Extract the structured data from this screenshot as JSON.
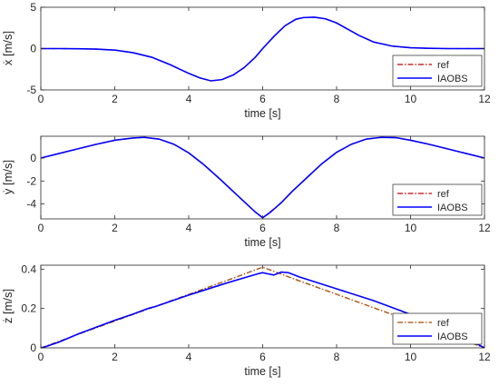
{
  "colors": {
    "ref": "#c00000",
    "ref_z": "#a64a00",
    "iaobs": "#0000ff",
    "axis": "#262626"
  },
  "chart_data": [
    {
      "type": "line",
      "ylabel": "ẋ [m/s]",
      "xlabel": "time [s]",
      "xlim": [
        0,
        12
      ],
      "ylim": [
        -5,
        5
      ],
      "xticks": [
        0,
        2,
        4,
        6,
        8,
        10,
        12
      ],
      "yticks": [
        -5,
        0,
        5
      ],
      "grid": false,
      "legend": "bottom-right",
      "series": [
        {
          "name": "ref",
          "style": "dash-dot",
          "color": "#c00000",
          "x": [
            0,
            0.5,
            1,
            1.5,
            2,
            2.5,
            3,
            3.5,
            4,
            4.3,
            4.6,
            4.9,
            5.2,
            5.5,
            5.8,
            6,
            6.3,
            6.6,
            6.9,
            7.1,
            7.4,
            7.7,
            8,
            8.3,
            8.6,
            9,
            9.5,
            10,
            10.5,
            11,
            11.5,
            12
          ],
          "y": [
            0,
            0,
            -0.02,
            -0.06,
            -0.18,
            -0.5,
            -1.05,
            -1.95,
            -3.0,
            -3.55,
            -3.9,
            -3.75,
            -3.2,
            -2.3,
            -1.05,
            0,
            1.45,
            2.75,
            3.55,
            3.75,
            3.8,
            3.6,
            3.1,
            2.35,
            1.6,
            0.8,
            0.3,
            0.1,
            0.03,
            0,
            0,
            0
          ]
        },
        {
          "name": "IAOBS",
          "style": "solid",
          "color": "#0000ff",
          "x": [
            0,
            0.5,
            1,
            1.5,
            2,
            2.5,
            3,
            3.5,
            4,
            4.3,
            4.6,
            4.9,
            5.2,
            5.5,
            5.8,
            6,
            6.3,
            6.6,
            6.9,
            7.1,
            7.4,
            7.7,
            8,
            8.3,
            8.6,
            9,
            9.5,
            10,
            10.5,
            11,
            11.5,
            12
          ],
          "y": [
            0,
            0,
            -0.02,
            -0.06,
            -0.18,
            -0.5,
            -1.05,
            -1.95,
            -3.0,
            -3.55,
            -3.9,
            -3.75,
            -3.2,
            -2.3,
            -1.05,
            0,
            1.45,
            2.75,
            3.55,
            3.75,
            3.8,
            3.6,
            3.1,
            2.35,
            1.6,
            0.8,
            0.3,
            0.1,
            0.03,
            0,
            0,
            0
          ]
        }
      ]
    },
    {
      "type": "line",
      "ylabel": "ẏ [m/s]",
      "xlabel": "time [s]",
      "xlim": [
        0,
        12
      ],
      "ylim": [
        -5.3,
        1.9
      ],
      "xticks": [
        0,
        2,
        4,
        6,
        8,
        10,
        12
      ],
      "yticks": [
        -4,
        -2,
        0
      ],
      "grid": false,
      "legend": "bottom-right",
      "series": [
        {
          "name": "ref",
          "style": "dash-dot",
          "color": "#c00000",
          "x": [
            0,
            0.5,
            1,
            1.5,
            2,
            2.5,
            2.8,
            3.2,
            3.6,
            4,
            4.4,
            4.8,
            5.2,
            5.5,
            5.8,
            6,
            6.2,
            6.5,
            6.8,
            7.2,
            7.6,
            8,
            8.4,
            8.8,
            9.2,
            9.6,
            10,
            10.5,
            11,
            11.5,
            12
          ],
          "y": [
            0,
            0.4,
            0.8,
            1.2,
            1.55,
            1.75,
            1.8,
            1.65,
            1.2,
            0.45,
            -0.55,
            -1.7,
            -2.9,
            -3.8,
            -4.7,
            -5.2,
            -4.7,
            -3.9,
            -2.9,
            -1.7,
            -0.5,
            0.5,
            1.2,
            1.65,
            1.8,
            1.78,
            1.55,
            1.2,
            0.8,
            0.4,
            0
          ]
        },
        {
          "name": "IAOBS",
          "style": "solid",
          "color": "#0000ff",
          "x": [
            0,
            0.5,
            1,
            1.5,
            2,
            2.5,
            2.8,
            3.2,
            3.6,
            4,
            4.4,
            4.8,
            5.2,
            5.5,
            5.8,
            6,
            6.2,
            6.5,
            6.8,
            7.2,
            7.6,
            8,
            8.4,
            8.8,
            9.2,
            9.6,
            10,
            10.5,
            11,
            11.5,
            12
          ],
          "y": [
            0,
            0.4,
            0.8,
            1.2,
            1.55,
            1.75,
            1.8,
            1.65,
            1.2,
            0.45,
            -0.55,
            -1.7,
            -2.9,
            -3.8,
            -4.7,
            -5.2,
            -4.75,
            -3.9,
            -2.9,
            -1.7,
            -0.5,
            0.5,
            1.2,
            1.65,
            1.8,
            1.78,
            1.55,
            1.2,
            0.8,
            0.4,
            0
          ]
        }
      ]
    },
    {
      "type": "line",
      "ylabel": "ż [m/s]",
      "xlabel": "time [s]",
      "xlim": [
        0,
        12
      ],
      "ylim": [
        0,
        0.42
      ],
      "xticks": [
        0,
        2,
        4,
        6,
        8,
        10,
        12
      ],
      "yticks": [
        0,
        0.2,
        0.4
      ],
      "grid": false,
      "legend": "bottom-right",
      "series": [
        {
          "name": "ref",
          "style": "dash-dot",
          "color": "#a64a00",
          "x": [
            0,
            1,
            2,
            3,
            4,
            5,
            6,
            7,
            8,
            9,
            10,
            11,
            12
          ],
          "y": [
            0,
            0.068,
            0.136,
            0.204,
            0.272,
            0.34,
            0.41,
            0.34,
            0.272,
            0.204,
            0.136,
            0.068,
            0
          ]
        },
        {
          "name": "IAOBS",
          "style": "solid",
          "color": "#0000ff",
          "x": [
            0,
            0.1,
            0.5,
            1,
            1.5,
            2,
            2.5,
            2.9,
            3.0,
            3.1,
            3.5,
            4,
            4.5,
            5,
            5.5,
            5.9,
            6,
            6.1,
            6.3,
            6.5,
            6.7,
            7,
            7.5,
            8,
            9,
            10,
            10.5,
            11,
            11.5,
            12
          ],
          "y": [
            0,
            0.004,
            0.03,
            0.07,
            0.105,
            0.14,
            0.172,
            0.2,
            0.205,
            0.21,
            0.236,
            0.268,
            0.298,
            0.328,
            0.356,
            0.378,
            0.382,
            0.378,
            0.37,
            0.385,
            0.382,
            0.36,
            0.33,
            0.3,
            0.24,
            0.17,
            0.135,
            0.1,
            0.05,
            0
          ]
        }
      ]
    }
  ],
  "legend": {
    "ref": "ref",
    "iaobs": "IAOBS"
  }
}
